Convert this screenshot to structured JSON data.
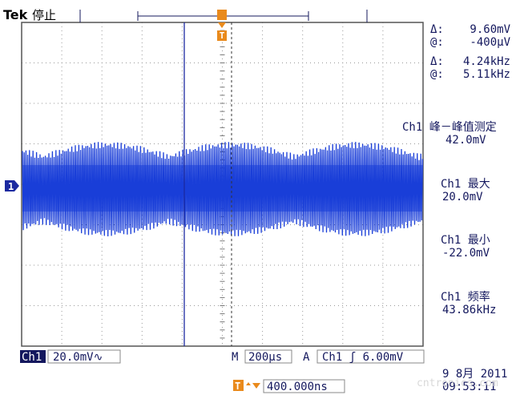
{
  "header": {
    "brand": "Tek",
    "status": "停止",
    "trigger_marker": "T",
    "channel_marker": "1"
  },
  "cursor_readouts": [
    {
      "label": "Δ:",
      "value": "9.60mV"
    },
    {
      "label": "@:",
      "value": "-400µV"
    },
    {
      "label": "Δ:",
      "value": "4.24kHz"
    },
    {
      "label": "@:",
      "value": "5.11kHz"
    }
  ],
  "measurements": [
    {
      "label": "Ch1 峰－峰值测定",
      "value": "42.0mV"
    },
    {
      "label": "Ch1 最大",
      "value": "20.0mV"
    },
    {
      "label": "Ch1 最小",
      "value": "-22.0mV"
    },
    {
      "label": "Ch1 频率",
      "value": "43.86kHz"
    }
  ],
  "status_bar": {
    "channel": "Ch1",
    "scale": "20.0mV∿",
    "timebase_label": "M",
    "timebase": "200µs",
    "trigger_label": "A",
    "trigger": "Ch1 ʃ 6.00mV",
    "delay_icon": "T",
    "delay": "400.000ns",
    "date": "9 8月  2011",
    "time": "09:53:11",
    "watermark": "cntronics.com"
  }
}
